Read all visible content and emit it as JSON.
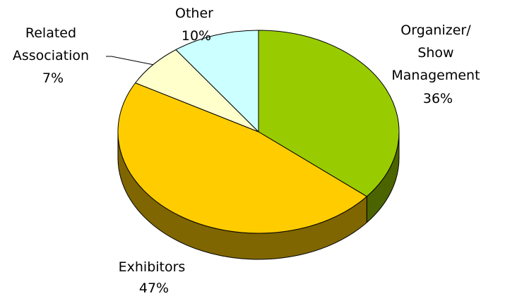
{
  "chart_data": {
    "type": "pie",
    "style": "3d",
    "slices": [
      {
        "label_lines": [
          "Organizer/",
          "Show",
          "Management"
        ],
        "value": 36,
        "value_text": "36%",
        "color": "#99cc00",
        "side_color": "#4b6400"
      },
      {
        "label_lines": [
          "Exhibitors"
        ],
        "value": 47,
        "value_text": "47%",
        "color": "#ffcc00",
        "side_color": "#806600"
      },
      {
        "label_lines": [
          "Related",
          "Association"
        ],
        "value": 7,
        "value_text": "7%",
        "color": "#ffffcc",
        "side_color": "#808066"
      },
      {
        "label_lines": [
          "Other"
        ],
        "value": 10,
        "value_text": "10%",
        "color": "#ccffff",
        "side_color": "#668080"
      }
    ]
  }
}
